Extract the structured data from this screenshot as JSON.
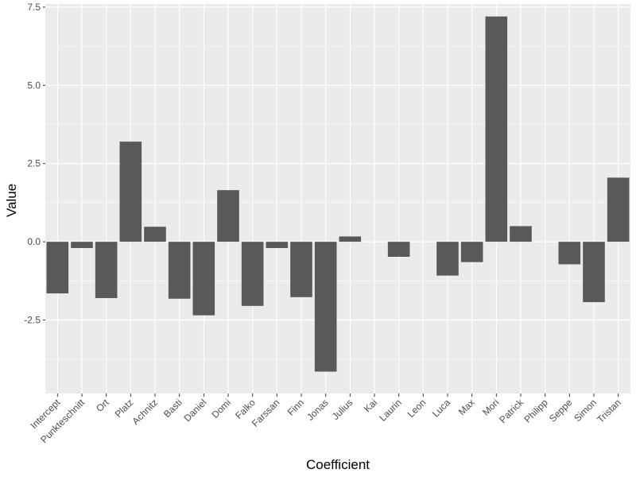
{
  "chart_data": {
    "type": "bar",
    "title": "",
    "xlabel": "Coefficient",
    "ylabel": "Value",
    "ylim": [
      -4.85,
      7.6
    ],
    "yticks": [
      -2.5,
      0,
      2.5,
      5,
      7.5
    ],
    "ytick_labels": [
      "-2.5",
      "0.0",
      "2.5",
      "5.0",
      "7.5"
    ],
    "grid": true,
    "categories": [
      "Intercept",
      "Punkteschnitt",
      "Ort",
      "Platz",
      "Achnitz",
      "Basti",
      "Daniel",
      "Domi",
      "Falko",
      "Farssan",
      "Finn",
      "Jonas",
      "Julius",
      "Kai",
      "Laurin",
      "Leon",
      "Luca",
      "Max",
      "Mori",
      "Patrick",
      "Philipp",
      "Seppe",
      "Simon",
      "Tristan"
    ],
    "values": [
      -1.65,
      -0.2,
      -1.8,
      3.2,
      0.48,
      -1.82,
      -2.35,
      1.65,
      -2.05,
      -0.2,
      -1.77,
      -4.15,
      0.17,
      0.0,
      -0.48,
      0.0,
      -1.08,
      -0.65,
      7.2,
      0.5,
      0.0,
      -0.72,
      -1.93,
      2.05
    ]
  },
  "colors": {
    "panel_background": "#ebebeb",
    "grid_major": "#ffffff",
    "bar_fill": "#595959",
    "tick_text": "#4d4d4d",
    "title_text": "#000000"
  }
}
